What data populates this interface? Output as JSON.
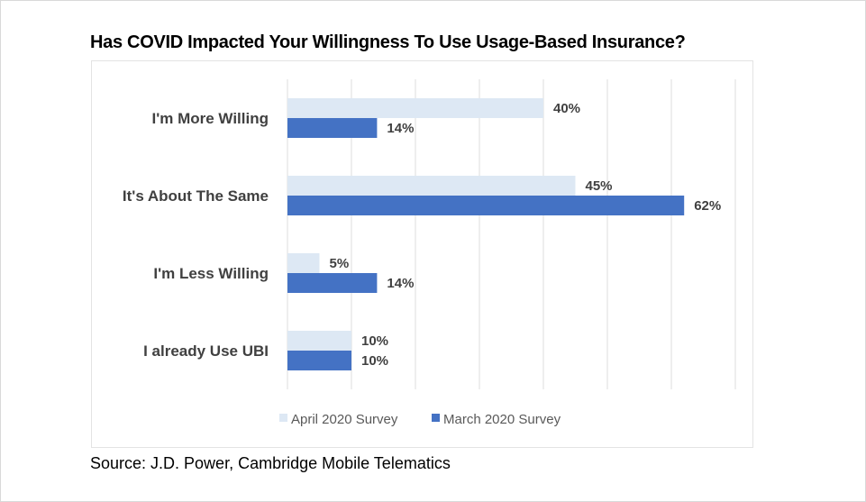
{
  "chart_data": {
    "type": "bar",
    "orientation": "horizontal",
    "title": "Has COVID Impacted Your Willingness To Use Usage-Based Insurance?",
    "categories": [
      "I'm More Willing",
      "It's About The Same",
      "I'm Less Willing",
      "I already Use UBI"
    ],
    "series": [
      {
        "name": "April 2020 Survey",
        "values": [
          40,
          45,
          5,
          10
        ],
        "labels": [
          "40%",
          "45%",
          "5%",
          "10%"
        ],
        "color": "#dde8f4"
      },
      {
        "name": "March 2020  Survey",
        "values": [
          14,
          62,
          14,
          10
        ],
        "labels": [
          "14%",
          "62%",
          "14%",
          "10%"
        ],
        "color": "#4472c4"
      }
    ],
    "xlabel": "",
    "ylabel": "",
    "xlim": [
      0,
      70
    ],
    "grid": true,
    "gridline_step": 10,
    "tick_labels_shown": false,
    "legend": "bottom",
    "source": "Source: J.D. Power, Cambridge Mobile Telematics"
  }
}
